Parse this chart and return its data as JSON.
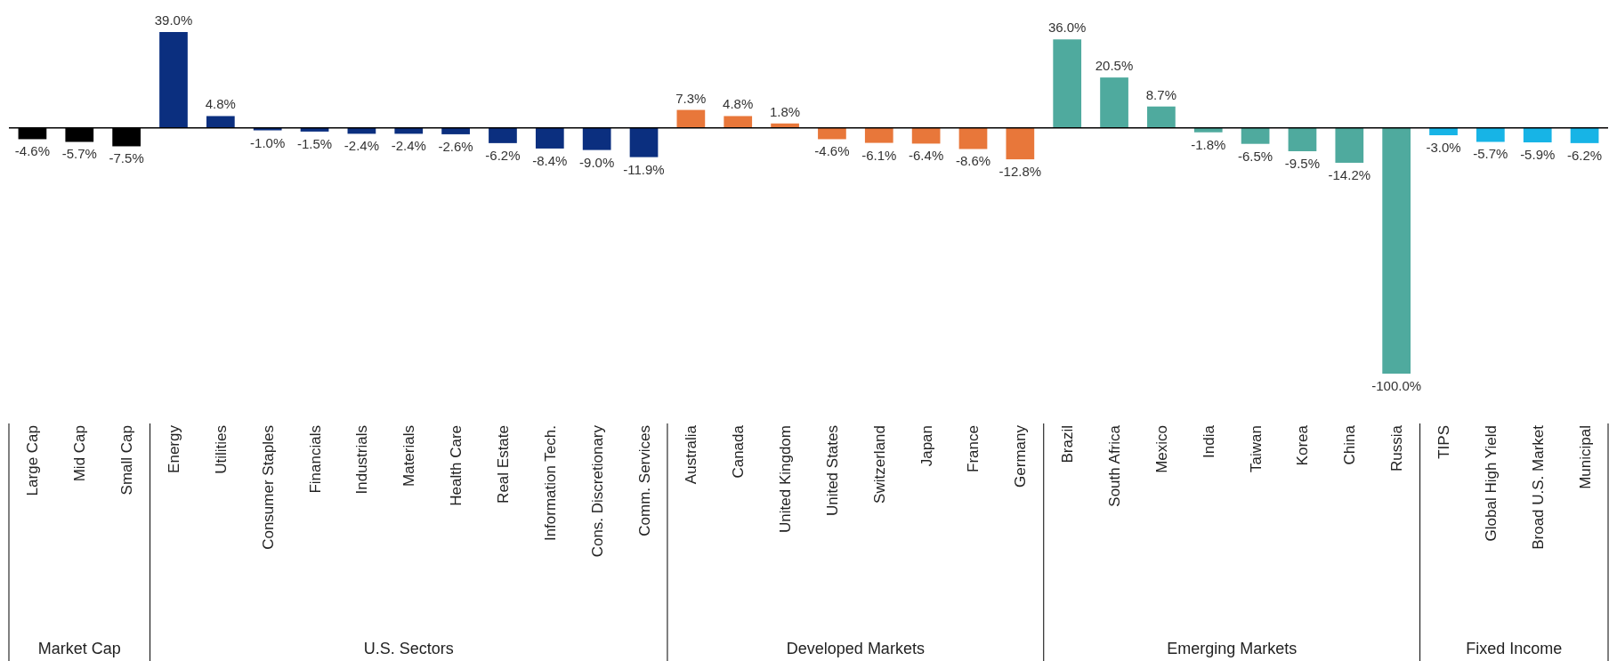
{
  "chart_data": {
    "type": "bar",
    "categories": [
      "Large Cap",
      "Mid Cap",
      "Small Cap",
      "Energy",
      "Utilities",
      "Consumer Staples",
      "Financials",
      "Industrials",
      "Materials",
      "Health Care",
      "Real Estate",
      "Information Tech.",
      "Cons. Discretionary",
      "Comm. Services",
      "Australia",
      "Canada",
      "United Kingdom",
      "United States",
      "Switzerland",
      "Japan",
      "France",
      "Germany",
      "Brazil",
      "South Africa",
      "Mexico",
      "India",
      "Taiwan",
      "Korea",
      "China",
      "Russia",
      "TIPS",
      "Global High Yield",
      "Broad U.S. Market",
      "Municipal"
    ],
    "series": [
      {
        "color": "#000000",
        "values": [
          -4.6,
          -5.7,
          -7.5,
          null,
          null,
          null,
          null,
          null,
          null,
          null,
          null,
          null,
          null,
          null,
          null,
          null,
          null,
          null,
          null,
          null,
          null,
          null,
          null,
          null,
          null,
          null,
          null,
          null,
          null,
          null,
          null,
          null,
          null,
          null
        ],
        "value_labels": [
          "-4.6%",
          "-5.7%",
          "-7.5%",
          null,
          null,
          null,
          null,
          null,
          null,
          null,
          null,
          null,
          null,
          null,
          null,
          null,
          null,
          null,
          null,
          null,
          null,
          null,
          null,
          null,
          null,
          null,
          null,
          null,
          null,
          null,
          null,
          null,
          null,
          null
        ]
      },
      {
        "color": "#0b2f7f",
        "values": [
          null,
          null,
          null,
          39.0,
          4.8,
          -1.0,
          -1.5,
          -2.4,
          -2.4,
          -2.6,
          -6.2,
          -8.4,
          -9.0,
          -11.9,
          null,
          null,
          null,
          null,
          null,
          null,
          null,
          null,
          null,
          null,
          null,
          null,
          null,
          null,
          null,
          null,
          null,
          null,
          null,
          null
        ],
        "value_labels": [
          null,
          null,
          null,
          "39.0%",
          "4.8%",
          "-1.0%",
          "-1.5%",
          "-2.4%",
          "-2.4%",
          "-2.6%",
          "-6.2%",
          "-8.4%",
          "-9.0%",
          "-11.9%",
          null,
          null,
          null,
          null,
          null,
          null,
          null,
          null,
          null,
          null,
          null,
          null,
          null,
          null,
          null,
          null,
          null,
          null,
          null,
          null
        ]
      },
      {
        "color": "#e8773a",
        "values": [
          null,
          null,
          null,
          null,
          null,
          null,
          null,
          null,
          null,
          null,
          null,
          null,
          null,
          null,
          7.3,
          4.8,
          1.8,
          -4.6,
          -6.1,
          -6.4,
          -8.6,
          -12.8,
          null,
          null,
          null,
          null,
          null,
          null,
          null,
          null,
          null,
          null,
          null,
          null
        ],
        "value_labels": [
          null,
          null,
          null,
          null,
          null,
          null,
          null,
          null,
          null,
          null,
          null,
          null,
          null,
          null,
          "7.3%",
          "4.8%",
          "1.8%",
          "-4.6%",
          "-6.1%",
          "-6.4%",
          "-8.6%",
          "-12.8%",
          null,
          null,
          null,
          null,
          null,
          null,
          null,
          null,
          null,
          null,
          null,
          null
        ]
      },
      {
        "color": "#4faa9e",
        "values": [
          null,
          null,
          null,
          null,
          null,
          null,
          null,
          null,
          null,
          null,
          null,
          null,
          null,
          null,
          null,
          null,
          null,
          null,
          null,
          null,
          null,
          null,
          36.0,
          20.5,
          8.7,
          -1.8,
          -6.5,
          -9.5,
          -14.2,
          -100.0,
          null,
          null,
          null,
          null
        ],
        "value_labels": [
          null,
          null,
          null,
          null,
          null,
          null,
          null,
          null,
          null,
          null,
          null,
          null,
          null,
          null,
          null,
          null,
          null,
          null,
          null,
          null,
          null,
          null,
          "36.0%",
          "20.5%",
          "8.7%",
          "-1.8%",
          "-6.5%",
          "-9.5%",
          "-14.2%",
          "-100.0%",
          null,
          null,
          null,
          null
        ]
      },
      {
        "color": "#17b4e6",
        "values": [
          null,
          null,
          null,
          null,
          null,
          null,
          null,
          null,
          null,
          null,
          null,
          null,
          null,
          null,
          null,
          null,
          null,
          null,
          null,
          null,
          null,
          null,
          null,
          null,
          null,
          null,
          null,
          null,
          null,
          null,
          -3.0,
          -5.7,
          -5.9,
          -6.2
        ],
        "value_labels": [
          null,
          null,
          null,
          null,
          null,
          null,
          null,
          null,
          null,
          null,
          null,
          null,
          null,
          null,
          null,
          null,
          null,
          null,
          null,
          null,
          null,
          null,
          null,
          null,
          null,
          null,
          null,
          null,
          null,
          null,
          "-3.0%",
          "-5.7%",
          "-5.9%",
          "-6.2%"
        ]
      }
    ],
    "annotations": [
      "Market Cap",
      "U.S. Sectors",
      "Developed Markets",
      "Emerging Markets",
      "Fixed Income"
    ]
  }
}
